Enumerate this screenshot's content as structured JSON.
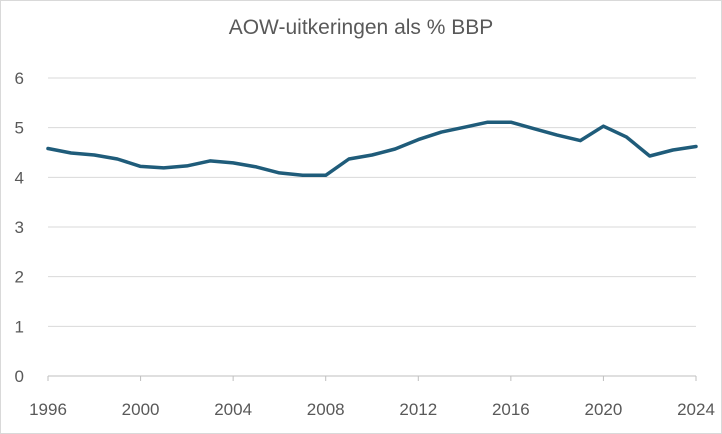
{
  "chart_data": {
    "type": "line",
    "title": "AOW-uitkeringen als % BBP",
    "xlabel": "",
    "ylabel": "",
    "xlim": [
      1996,
      2024
    ],
    "ylim": [
      0,
      6
    ],
    "x_ticks": [
      "1996",
      "2000",
      "2004",
      "2008",
      "2012",
      "2016",
      "2020",
      "2024"
    ],
    "y_ticks": [
      "0",
      "1",
      "2",
      "3",
      "4",
      "5",
      "6"
    ],
    "grid": true,
    "legend": "none",
    "series": [
      {
        "color": "#1f5c7a",
        "x": [
          1996,
          1997,
          1998,
          1999,
          2000,
          2001,
          2002,
          2003,
          2004,
          2005,
          2006,
          2007,
          2008,
          2009,
          2010,
          2011,
          2012,
          2013,
          2014,
          2015,
          2016,
          2017,
          2018,
          2019,
          2020,
          2021,
          2022,
          2023,
          2024
        ],
        "values": [
          4.58,
          4.49,
          4.45,
          4.37,
          4.22,
          4.19,
          4.23,
          4.33,
          4.29,
          4.21,
          4.09,
          4.04,
          4.04,
          4.37,
          4.45,
          4.57,
          4.76,
          4.91,
          5.01,
          5.11,
          5.11,
          4.98,
          4.85,
          4.74,
          5.03,
          4.81,
          4.43,
          4.55,
          4.62
        ]
      }
    ]
  }
}
